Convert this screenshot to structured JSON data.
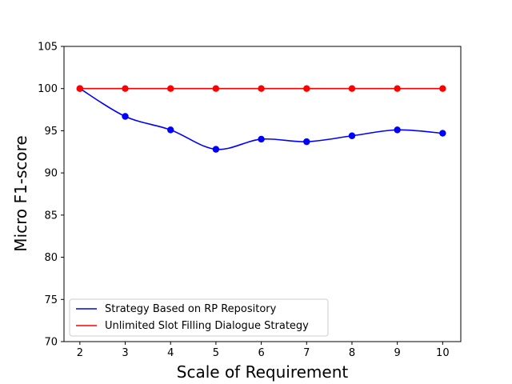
{
  "chart_data": {
    "type": "line",
    "title": "",
    "xlabel": "Scale of Requirement",
    "ylabel": "Micro F1-score",
    "x": [
      2,
      3,
      4,
      5,
      6,
      7,
      8,
      9,
      10
    ],
    "xlim": [
      1.65,
      10.4
    ],
    "ylim": [
      70,
      105
    ],
    "x_ticks": [
      "2",
      "3",
      "4",
      "5",
      "6",
      "7",
      "8",
      "9",
      "10"
    ],
    "y_ticks": [
      "70",
      "75",
      "80",
      "85",
      "90",
      "95",
      "100",
      "105"
    ],
    "grid": false,
    "legend_position": "lower-left",
    "series": [
      {
        "name": "Strategy Based on RP Repository",
        "color": "#0000ff",
        "values": [
          100,
          96.7,
          95.1,
          92.8,
          94.0,
          93.7,
          94.4,
          95.1,
          94.7
        ],
        "style": "smooth-line-with-markers"
      },
      {
        "name": "Unlimited Slot Filling Dialogue Strategy",
        "color": "#ff0000",
        "values": [
          100,
          100,
          100,
          100,
          100,
          100,
          100,
          100,
          100
        ],
        "style": "line-with-markers"
      }
    ]
  }
}
